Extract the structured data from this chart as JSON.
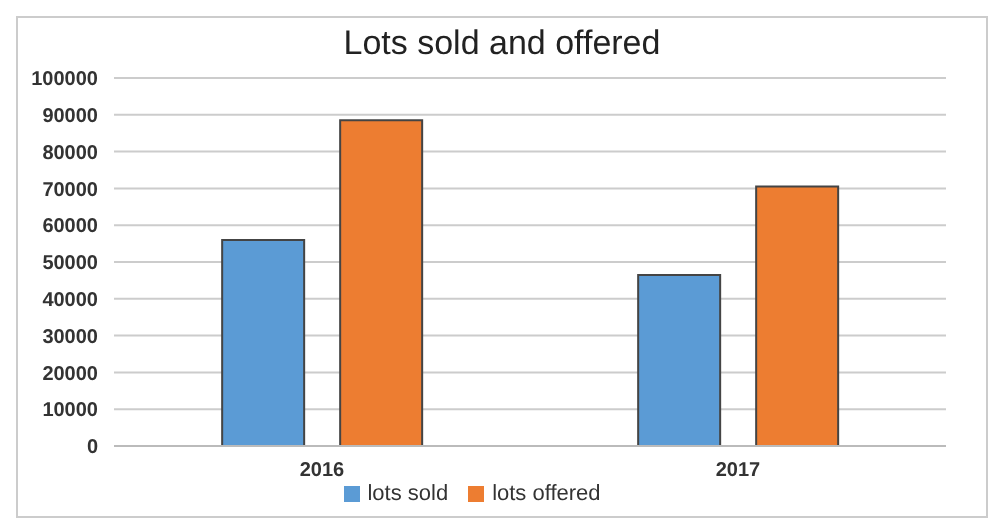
{
  "chart_data": {
    "type": "bar",
    "title": "Lots sold and offered",
    "categories": [
      "2016",
      "2017"
    ],
    "series": [
      {
        "name": "lots sold",
        "color": "#5b9bd5",
        "values": [
          56000,
          46500
        ]
      },
      {
        "name": "lots offered",
        "color": "#ed7d31",
        "values": [
          88500,
          70500
        ]
      }
    ],
    "ylim": [
      0,
      100000
    ],
    "yticks": [
      0,
      10000,
      20000,
      30000,
      40000,
      50000,
      60000,
      70000,
      80000,
      90000,
      100000
    ],
    "grid": "y",
    "legend": "bottom"
  }
}
